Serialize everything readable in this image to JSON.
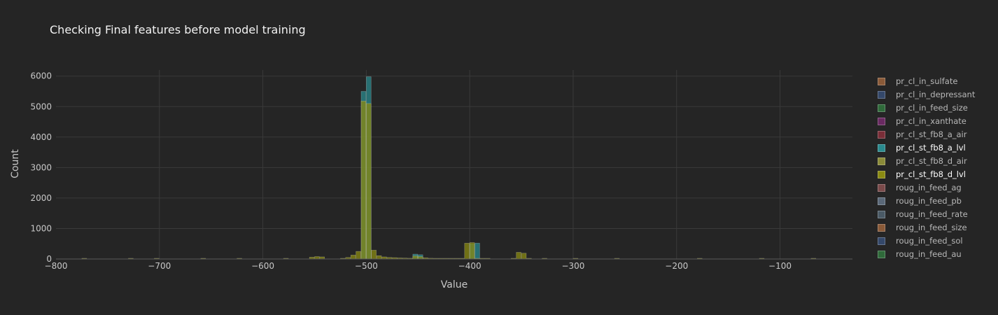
{
  "chart_data": {
    "type": "bar",
    "title": "Checking Final features before model training",
    "xlabel": "Value",
    "ylabel": "Count",
    "xlim": [
      -800,
      -30
    ],
    "ylim": [
      0,
      6200
    ],
    "x_ticks": [
      -800,
      -700,
      -600,
      -500,
      -400,
      -300,
      -200,
      -100
    ],
    "x_tick_labels": [
      "−800",
      "−700",
      "−600",
      "−500",
      "−400",
      "−300",
      "−200",
      "−100"
    ],
    "y_ticks": [
      0,
      1000,
      2000,
      3000,
      4000,
      5000,
      6000
    ],
    "y_tick_labels": [
      "0",
      "1000",
      "2000",
      "3000",
      "4000",
      "5000",
      "6000"
    ],
    "grid": true,
    "legend_position": "right",
    "bin_width": 5,
    "series": [
      {
        "name": "pr_cl_in_sulfate",
        "color": "#8a5a38"
      },
      {
        "name": "pr_cl_in_depressant",
        "color": "#34486a"
      },
      {
        "name": "pr_cl_in_feed_size",
        "color": "#2f6a3a"
      },
      {
        "name": "pr_cl_in_xanthate",
        "color": "#6a2a62"
      },
      {
        "name": "pr_cl_st_fb8_a_air",
        "color": "#7a2e38"
      },
      {
        "name": "pr_cl_st_fb8_a_lvl",
        "color": "#2a8a8e",
        "active": true,
        "bins": [
          {
            "x": -505,
            "y": 5500
          },
          {
            "x": -500,
            "y": 5980
          },
          {
            "x": -455,
            "y": 160
          },
          {
            "x": -450,
            "y": 140
          },
          {
            "x": -400,
            "y": 500
          },
          {
            "x": -395,
            "y": 520
          }
        ]
      },
      {
        "name": "pr_cl_st_fb8_d_air",
        "color": "#8a8a38"
      },
      {
        "name": "pr_cl_st_fb8_d_lvl",
        "color": "#8a8a12",
        "active": true,
        "bins": [
          {
            "x": -775,
            "y": 10
          },
          {
            "x": -730,
            "y": 10
          },
          {
            "x": -705,
            "y": 10
          },
          {
            "x": -660,
            "y": 10
          },
          {
            "x": -625,
            "y": 10
          },
          {
            "x": -580,
            "y": 10
          },
          {
            "x": -555,
            "y": 60
          },
          {
            "x": -550,
            "y": 80
          },
          {
            "x": -545,
            "y": 70
          },
          {
            "x": -525,
            "y": 20
          },
          {
            "x": -520,
            "y": 50
          },
          {
            "x": -515,
            "y": 130
          },
          {
            "x": -510,
            "y": 250
          },
          {
            "x": -505,
            "y": 5180
          },
          {
            "x": -500,
            "y": 5100
          },
          {
            "x": -495,
            "y": 290
          },
          {
            "x": -490,
            "y": 110
          },
          {
            "x": -485,
            "y": 70
          },
          {
            "x": -480,
            "y": 50
          },
          {
            "x": -475,
            "y": 45
          },
          {
            "x": -470,
            "y": 35
          },
          {
            "x": -465,
            "y": 30
          },
          {
            "x": -460,
            "y": 25
          },
          {
            "x": -455,
            "y": 100
          },
          {
            "x": -450,
            "y": 80
          },
          {
            "x": -445,
            "y": 40
          },
          {
            "x": -440,
            "y": 25
          },
          {
            "x": -435,
            "y": 20
          },
          {
            "x": -430,
            "y": 15
          },
          {
            "x": -425,
            "y": 15
          },
          {
            "x": -420,
            "y": 15
          },
          {
            "x": -415,
            "y": 15
          },
          {
            "x": -410,
            "y": 20
          },
          {
            "x": -405,
            "y": 520
          },
          {
            "x": -400,
            "y": 540
          },
          {
            "x": -395,
            "y": 20
          },
          {
            "x": -390,
            "y": 15
          },
          {
            "x": -385,
            "y": 10
          },
          {
            "x": -360,
            "y": 10
          },
          {
            "x": -355,
            "y": 220
          },
          {
            "x": -350,
            "y": 190
          },
          {
            "x": -345,
            "y": 10
          },
          {
            "x": -330,
            "y": 10
          },
          {
            "x": -300,
            "y": 10
          },
          {
            "x": -260,
            "y": 10
          },
          {
            "x": -180,
            "y": 10
          },
          {
            "x": -120,
            "y": 10
          },
          {
            "x": -70,
            "y": 10
          }
        ]
      },
      {
        "name": "roug_in_feed_ag",
        "color": "#7a4a4a"
      },
      {
        "name": "roug_in_feed_pb",
        "color": "#5a6878"
      },
      {
        "name": "roug_in_feed_rate",
        "color": "#4a5a66"
      },
      {
        "name": "roug_in_feed_size",
        "color": "#8a5a38"
      },
      {
        "name": "roug_in_feed_sol",
        "color": "#34486a"
      },
      {
        "name": "roug_in_feed_au",
        "color": "#2f6a3a"
      }
    ]
  }
}
